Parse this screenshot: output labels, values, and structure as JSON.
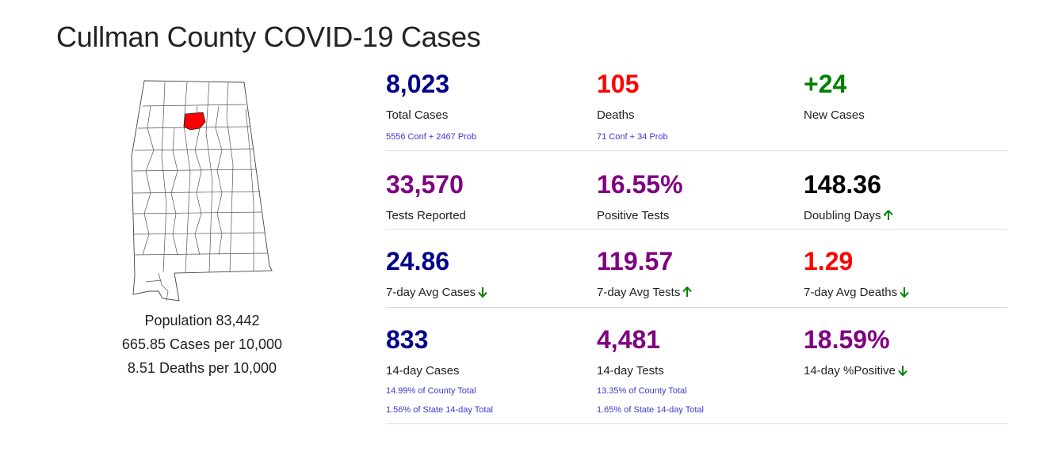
{
  "title": "Cullman County COVID-19 Cases",
  "colors": {
    "navy": "#00008b",
    "red": "#ff0000",
    "green": "#008000",
    "purple": "#800080",
    "black": "#000000",
    "sublink": "#3a3ad0"
  },
  "map": {
    "highlighted_county": "Cullman",
    "highlight_color": "#ff0000"
  },
  "population": {
    "population": "Population 83,442",
    "cases_per": "665.85 Cases per 10,000",
    "deaths_per": "8.51 Deaths per 10,000"
  },
  "stats": {
    "total_cases": {
      "value": "8,023",
      "label": "Total Cases",
      "sub": "5556 Conf + 2467 Prob",
      "color": "navy"
    },
    "deaths": {
      "value": "105",
      "label": "Deaths",
      "sub": "71 Conf + 34 Prob",
      "color": "red"
    },
    "new_cases": {
      "value": "+24",
      "label": "New Cases",
      "color": "green"
    },
    "tests_reported": {
      "value": "33,570",
      "label": "Tests Reported",
      "color": "purple"
    },
    "positive_tests": {
      "value": "16.55%",
      "label": "Positive Tests",
      "color": "purple"
    },
    "doubling_days": {
      "value": "148.36",
      "label": "Doubling Days",
      "trend": "up-arrow",
      "color": "black"
    },
    "avg_cases_7": {
      "value": "24.86",
      "label": "7-day Avg Cases",
      "trend": "down-arrow",
      "color": "navy"
    },
    "avg_tests_7": {
      "value": "119.57",
      "label": "7-day Avg Tests",
      "trend": "up-arrow",
      "color": "purple"
    },
    "avg_deaths_7": {
      "value": "1.29",
      "label": "7-day Avg Deaths",
      "trend": "down-arrow",
      "color": "red"
    },
    "cases_14": {
      "value": "833",
      "label": "14-day Cases",
      "sub1": "14.99% of County Total",
      "sub2": "1.56% of State 14-day Total",
      "color": "navy"
    },
    "tests_14": {
      "value": "4,481",
      "label": "14-day Tests",
      "sub1": "13.35% of County Total",
      "sub2": "1.65% of State 14-day Total",
      "color": "purple"
    },
    "positive_14": {
      "value": "18.59%",
      "label": "14-day %Positive",
      "trend": "down-arrow",
      "color": "purple"
    }
  }
}
